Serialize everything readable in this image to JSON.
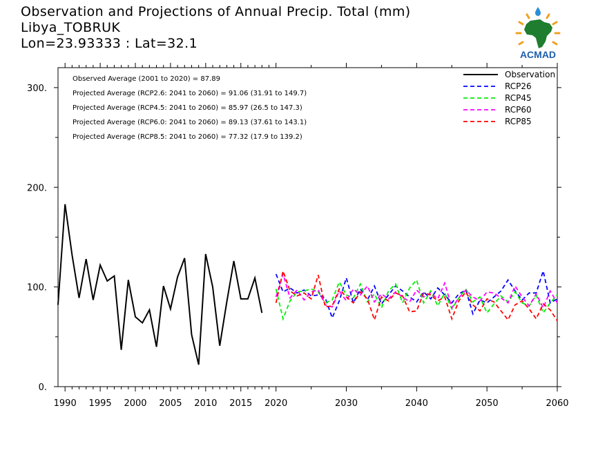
{
  "header": {
    "title": "Observation and Projections of Annual Precip. Total (mm)",
    "station": "Libya_TOBRUK",
    "coords": "Lon=23.93333 : Lat=32.1"
  },
  "logo": {
    "text": "ACMAD",
    "icon": "africa-map-logo"
  },
  "colors": {
    "observation": "#000000",
    "RCP26": "#0000ff",
    "RCP45": "#00ee00",
    "RCP60": "#ff00ff",
    "RCP85": "#ff0000"
  },
  "annotations": [
    "Observed Average (2001 to 2020) = 87.89",
    "Projected Average (RCP2.6: 2041 to 2060) = 91.06 (31.91 to 149.7)",
    "Projected Average (RCP4.5: 2041 to 2060) = 85.97 (26.5 to 147.3)",
    "Projected Average (RCP6.0: 2041 to 2060) = 89.13 (37.61 to 143.1)",
    "Projected Average (RCP8.5: 2041 to 2060) = 77.32 (17.9 to 139.2)"
  ],
  "chart_data": {
    "type": "line",
    "title": "Observation and Projections of Annual Precip. Total (mm)",
    "xlabel": "",
    "ylabel": "",
    "xlim": [
      1989,
      2060
    ],
    "ylim": [
      0,
      320
    ],
    "x_ticks": [
      1990,
      1995,
      2000,
      2005,
      2010,
      2015,
      2020,
      2030,
      2040,
      2050,
      2060
    ],
    "y_ticks": [
      0,
      100,
      200,
      300
    ],
    "y_tick_labels": [
      "0.",
      "100.",
      "200.",
      "300."
    ],
    "grid": false,
    "legend_position": "top-right",
    "series": [
      {
        "name": "Observation",
        "style": "solid",
        "x": [
          1989,
          1990,
          1991,
          1992,
          1993,
          1994,
          1995,
          1996,
          1997,
          1998,
          1999,
          2000,
          2001,
          2002,
          2003,
          2004,
          2005,
          2006,
          2007,
          2008,
          2009,
          2010,
          2011,
          2012,
          2013,
          2014,
          2015,
          2016,
          2017,
          2018,
          2019,
          2020
        ],
        "values": [
          82,
          183,
          132,
          89,
          128,
          87,
          122,
          106,
          111,
          37,
          107,
          70,
          64,
          77,
          40,
          101,
          78,
          110,
          129,
          52,
          22,
          133,
          100,
          41,
          85,
          126,
          88,
          88,
          109,
          74,
          null,
          null
        ]
      },
      {
        "name": "RCP26",
        "style": "dashed",
        "x": [
          2020,
          2021,
          2022,
          2023,
          2024,
          2025,
          2026,
          2027,
          2028,
          2029,
          2030,
          2031,
          2032,
          2033,
          2034,
          2035,
          2036,
          2037,
          2038,
          2039,
          2040,
          2041,
          2042,
          2043,
          2044,
          2045,
          2046,
          2047,
          2048,
          2049,
          2050,
          2051,
          2052,
          2053,
          2054,
          2055,
          2056,
          2057,
          2058,
          2059,
          2060
        ],
        "values": [
          113,
          95,
          99,
          94,
          97,
          91,
          92,
          89,
          69,
          86,
          109,
          84,
          98,
          87,
          101,
          83,
          92,
          101,
          96,
          90,
          85,
          95,
          88,
          99,
          92,
          84,
          93,
          97,
          73,
          87,
          84,
          90,
          96,
          107,
          96,
          87,
          94,
          94,
          116,
          84,
          88
        ]
      },
      {
        "name": "RCP45",
        "style": "dashed",
        "x": [
          2020,
          2021,
          2022,
          2023,
          2024,
          2025,
          2026,
          2027,
          2028,
          2029,
          2030,
          2031,
          2032,
          2033,
          2034,
          2035,
          2036,
          2037,
          2038,
          2039,
          2040,
          2041,
          2042,
          2043,
          2044,
          2045,
          2046,
          2047,
          2048,
          2049,
          2050,
          2051,
          2052,
          2053,
          2054,
          2055,
          2056,
          2057,
          2058,
          2059,
          2060
        ],
        "values": [
          98,
          68,
          86,
          95,
          96,
          98,
          95,
          84,
          87,
          105,
          92,
          89,
          103,
          85,
          93,
          79,
          96,
          103,
          84,
          99,
          107,
          84,
          96,
          81,
          94,
          78,
          89,
          98,
          85,
          90,
          74,
          83,
          91,
          85,
          95,
          84,
          81,
          92,
          74,
          84,
          92
        ]
      },
      {
        "name": "RCP60",
        "style": "dashed",
        "x": [
          2020,
          2021,
          2022,
          2023,
          2024,
          2025,
          2026,
          2027,
          2028,
          2029,
          2030,
          2031,
          2032,
          2033,
          2034,
          2035,
          2036,
          2037,
          2038,
          2039,
          2040,
          2041,
          2042,
          2043,
          2044,
          2045,
          2046,
          2047,
          2048,
          2049,
          2050,
          2051,
          2052,
          2053,
          2054,
          2055,
          2056,
          2057,
          2058,
          2059,
          2060
        ],
        "values": [
          90,
          113,
          89,
          97,
          87,
          95,
          97,
          82,
          80,
          96,
          86,
          98,
          92,
          101,
          85,
          93,
          88,
          95,
          90,
          85,
          97,
          90,
          94,
          88,
          104,
          79,
          89,
          97,
          90,
          86,
          95,
          94,
          89,
          84,
          101,
          90,
          81,
          93,
          79,
          96,
          84
        ]
      },
      {
        "name": "RCP85",
        "style": "dashed",
        "x": [
          2020,
          2021,
          2022,
          2023,
          2024,
          2025,
          2026,
          2027,
          2028,
          2029,
          2030,
          2031,
          2032,
          2033,
          2034,
          2035,
          2036,
          2037,
          2038,
          2039,
          2040,
          2041,
          2042,
          2043,
          2044,
          2045,
          2046,
          2047,
          2048,
          2049,
          2050,
          2051,
          2052,
          2053,
          2054,
          2055,
          2056,
          2057,
          2058,
          2059,
          2060
        ],
        "values": [
          84,
          116,
          96,
          91,
          94,
          88,
          112,
          80,
          81,
          98,
          90,
          84,
          95,
          88,
          67,
          90,
          86,
          94,
          91,
          75,
          76,
          94,
          92,
          86,
          90,
          68,
          86,
          95,
          82,
          76,
          88,
          85,
          76,
          67,
          82,
          86,
          78,
          68,
          83,
          77,
          66
        ]
      }
    ]
  }
}
